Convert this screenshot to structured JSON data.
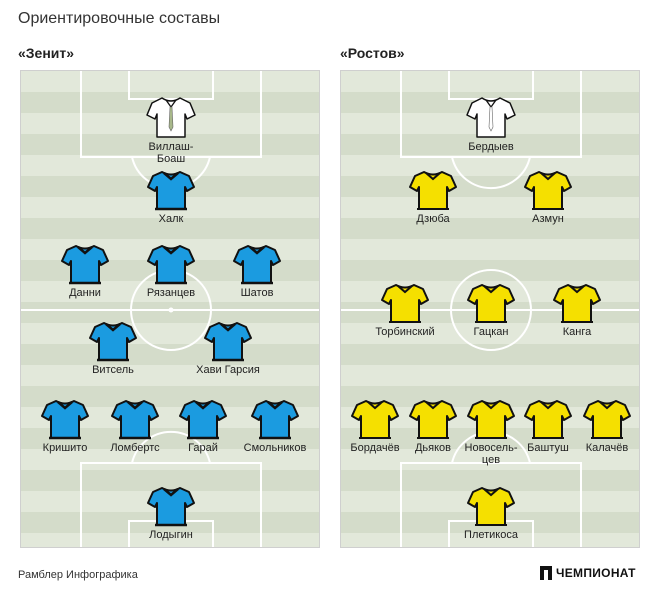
{
  "title": "Ориентировочные составы",
  "colors": {
    "zenit_kit": "#1b9be0",
    "rostov_kit": "#f5e000",
    "goalkeeper_kit": "#ffffff",
    "lines": "#ffffff"
  },
  "teams": [
    {
      "name": "«Зенит»",
      "kit": "blue",
      "players": [
        {
          "name": "Виллаш-\nБоаш",
          "role": "coach"
        },
        {
          "name": "Халк",
          "role": "field"
        },
        {
          "name": "Данни",
          "role": "field"
        },
        {
          "name": "Рязанцев",
          "role": "field"
        },
        {
          "name": "Шатов",
          "role": "field"
        },
        {
          "name": "Витсель",
          "role": "field"
        },
        {
          "name": "Хави Гарсия",
          "role": "field"
        },
        {
          "name": "Кришито",
          "role": "field"
        },
        {
          "name": "Ломбертс",
          "role": "field"
        },
        {
          "name": "Гарай",
          "role": "field"
        },
        {
          "name": "Смольников",
          "role": "field"
        },
        {
          "name": "Лодыгин",
          "role": "field"
        }
      ]
    },
    {
      "name": "«Ростов»",
      "kit": "yellow",
      "players": [
        {
          "name": "Бердыев",
          "role": "coach"
        },
        {
          "name": "Дзюба",
          "role": "field"
        },
        {
          "name": "Азмун",
          "role": "field"
        },
        {
          "name": "Торбинский",
          "role": "field"
        },
        {
          "name": "Гацкан",
          "role": "field"
        },
        {
          "name": "Канга",
          "role": "field"
        },
        {
          "name": "Бордачёв",
          "role": "field"
        },
        {
          "name": "Дьяков",
          "role": "field"
        },
        {
          "name": "Новосель-\nцев",
          "role": "field"
        },
        {
          "name": "Баштуш",
          "role": "field"
        },
        {
          "name": "Калачёв",
          "role": "field"
        },
        {
          "name": "Плетикоса",
          "role": "field"
        }
      ]
    }
  ],
  "footer": {
    "source": "Рамблер Инфографика",
    "brand": "ЧЕМПИОНАТ"
  }
}
